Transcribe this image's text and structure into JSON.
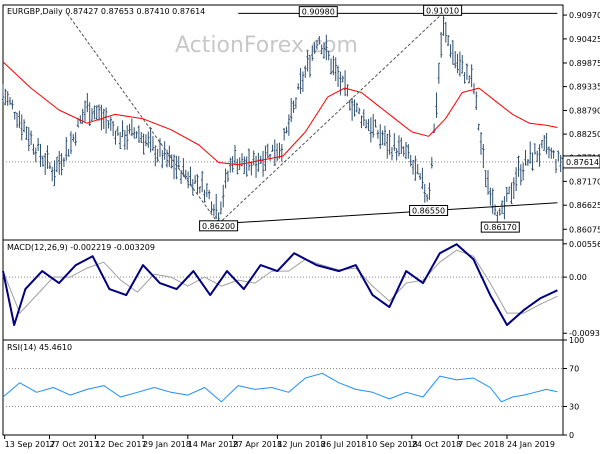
{
  "chart_data": [
    {
      "type": "line",
      "subtype": "candlestick-bars",
      "title": "EURGBP,Daily  0.87427 0.87653 0.87410 0.87614",
      "watermark": "ActionForex.com",
      "ylim": [
        0.8583,
        0.912
      ],
      "y_ticks": [
        "0.90970",
        "0.90425",
        "0.89875",
        "0.89335",
        "0.88790",
        "0.88250",
        "0.87715",
        "0.87170",
        "0.86625",
        "0.86075"
      ],
      "y_tick_values": [
        0.9097,
        0.90425,
        0.89875,
        0.89335,
        0.8879,
        0.8825,
        0.87715,
        0.8717,
        0.86625,
        0.86075
      ],
      "last_price_label": "0.87614",
      "last_price": 0.87614,
      "annotations": [
        {
          "text": "0.90980",
          "x": 0.563,
          "y": 0.9098
        },
        {
          "text": "0.91010",
          "x": 0.785,
          "y": 0.9101
        },
        {
          "text": "0.86200",
          "x": 0.385,
          "y": 0.862
        },
        {
          "text": "0.86550",
          "x": 0.76,
          "y": 0.8655
        },
        {
          "text": "0.86170",
          "x": 0.888,
          "y": 0.8617
        }
      ],
      "price_series": {
        "name": "EURGBP",
        "x": [
          0.0,
          0.03,
          0.06,
          0.09,
          0.12,
          0.15,
          0.18,
          0.21,
          0.24,
          0.27,
          0.3,
          0.33,
          0.36,
          0.385,
          0.41,
          0.44,
          0.47,
          0.5,
          0.53,
          0.563,
          0.6,
          0.63,
          0.66,
          0.69,
          0.72,
          0.76,
          0.785,
          0.81,
          0.84,
          0.86,
          0.888,
          0.92,
          0.95,
          0.97,
          0.99
        ],
        "values": [
          0.892,
          0.886,
          0.879,
          0.874,
          0.88,
          0.889,
          0.886,
          0.882,
          0.883,
          0.879,
          0.876,
          0.873,
          0.87,
          0.865,
          0.877,
          0.875,
          0.878,
          0.88,
          0.893,
          0.905,
          0.895,
          0.888,
          0.884,
          0.88,
          0.878,
          0.868,
          0.907,
          0.899,
          0.894,
          0.874,
          0.863,
          0.874,
          0.878,
          0.879,
          0.8761
        ]
      },
      "moving_average": {
        "name": "MA",
        "color": "#ff0000",
        "x": [
          0.0,
          0.05,
          0.1,
          0.15,
          0.2,
          0.25,
          0.3,
          0.35,
          0.385,
          0.42,
          0.46,
          0.5,
          0.54,
          0.58,
          0.61,
          0.64,
          0.67,
          0.7,
          0.73,
          0.76,
          0.79,
          0.82,
          0.85,
          0.88,
          0.91,
          0.94,
          0.97,
          0.99
        ],
        "values": [
          0.899,
          0.893,
          0.888,
          0.885,
          0.887,
          0.886,
          0.8835,
          0.88,
          0.876,
          0.8755,
          0.8765,
          0.8775,
          0.883,
          0.891,
          0.893,
          0.892,
          0.889,
          0.886,
          0.883,
          0.882,
          0.886,
          0.892,
          0.893,
          0.89,
          0.887,
          0.885,
          0.8845,
          0.884
        ]
      },
      "colors": {
        "price": "#2f4f6f",
        "ma": "#ff0000",
        "lines": "#000000",
        "dashed": "#555555"
      }
    },
    {
      "type": "line",
      "title": "MACD(12,26,9) -0.002219 -0.003209",
      "ylim": [
        -0.0105,
        0.0062
      ],
      "y_ticks": [
        "0.005567",
        "0.00",
        "-0.00937"
      ],
      "y_tick_values": [
        0.005567,
        0.0,
        -0.00937
      ],
      "series": [
        {
          "name": "MACD",
          "color": "#000080",
          "x": [
            0.0,
            0.02,
            0.04,
            0.07,
            0.1,
            0.13,
            0.16,
            0.19,
            0.22,
            0.25,
            0.28,
            0.31,
            0.34,
            0.37,
            0.4,
            0.43,
            0.46,
            0.49,
            0.52,
            0.56,
            0.6,
            0.63,
            0.66,
            0.69,
            0.72,
            0.75,
            0.78,
            0.81,
            0.84,
            0.87,
            0.9,
            0.93,
            0.96,
            0.99
          ],
          "values": [
            0.001,
            -0.008,
            -0.002,
            0.001,
            -0.001,
            0.002,
            0.0035,
            -0.002,
            -0.003,
            0.002,
            -0.001,
            -0.002,
            0.001,
            -0.003,
            0.001,
            -0.002,
            0.002,
            0.001,
            0.004,
            0.002,
            0.001,
            0.002,
            -0.003,
            -0.005,
            0.001,
            -0.001,
            0.004,
            0.0055,
            0.003,
            -0.003,
            -0.008,
            -0.0055,
            -0.0035,
            -0.0022
          ]
        },
        {
          "name": "Signal",
          "color": "#a0a0a0",
          "x": [
            0.0,
            0.03,
            0.06,
            0.09,
            0.12,
            0.15,
            0.18,
            0.21,
            0.24,
            0.27,
            0.3,
            0.33,
            0.36,
            0.39,
            0.42,
            0.45,
            0.48,
            0.51,
            0.54,
            0.57,
            0.6,
            0.63,
            0.66,
            0.69,
            0.72,
            0.75,
            0.78,
            0.81,
            0.84,
            0.87,
            0.9,
            0.93,
            0.96,
            0.99
          ],
          "values": [
            0.001,
            -0.006,
            -0.003,
            0.0,
            0.0,
            0.0015,
            0.0025,
            -0.0005,
            -0.0025,
            0.0005,
            0.0,
            -0.0015,
            0.0,
            -0.0015,
            -0.0005,
            -0.001,
            0.001,
            0.001,
            0.003,
            0.002,
            0.0012,
            0.0015,
            -0.0015,
            -0.004,
            -0.001,
            -0.0005,
            0.0025,
            0.0045,
            0.0035,
            -0.001,
            -0.006,
            -0.006,
            -0.0045,
            -0.0032
          ]
        }
      ]
    },
    {
      "type": "line",
      "title": "RSI(14) 45.4610",
      "ylim": [
        0,
        100
      ],
      "y_ticks": [
        "100",
        "70",
        "30",
        "0"
      ],
      "y_tick_values": [
        100,
        70,
        30,
        0
      ],
      "guide_levels": [
        70,
        30
      ],
      "series": [
        {
          "name": "RSI",
          "color": "#1e90ff",
          "x": [
            0.0,
            0.03,
            0.06,
            0.09,
            0.12,
            0.15,
            0.18,
            0.21,
            0.24,
            0.27,
            0.3,
            0.33,
            0.36,
            0.39,
            0.42,
            0.45,
            0.48,
            0.51,
            0.54,
            0.57,
            0.6,
            0.63,
            0.66,
            0.69,
            0.72,
            0.75,
            0.78,
            0.81,
            0.84,
            0.87,
            0.89,
            0.91,
            0.93,
            0.95,
            0.97,
            0.99
          ],
          "values": [
            40,
            55,
            45,
            50,
            42,
            48,
            52,
            40,
            45,
            50,
            45,
            42,
            50,
            35,
            52,
            48,
            50,
            45,
            60,
            65,
            55,
            48,
            45,
            38,
            45,
            40,
            62,
            58,
            60,
            50,
            35,
            40,
            42,
            45,
            48,
            45.5
          ]
        }
      ]
    }
  ],
  "x_axis": {
    "tick_labels": [
      "13 Sep 2017",
      "27 Oct 2017",
      "12 Dec 2017",
      "29 Jan 2018",
      "14 Mar 2018",
      "27 Apr 2018",
      "12 Jun 2018",
      "26 Jul 2018",
      "10 Sep 2018",
      "24 Oct 2018",
      "7 Dec 2018",
      "24 Jan 2019"
    ],
    "tick_positions": [
      0.003,
      0.083,
      0.165,
      0.25,
      0.33,
      0.41,
      0.49,
      0.568,
      0.65,
      0.73,
      0.813,
      0.9
    ]
  }
}
